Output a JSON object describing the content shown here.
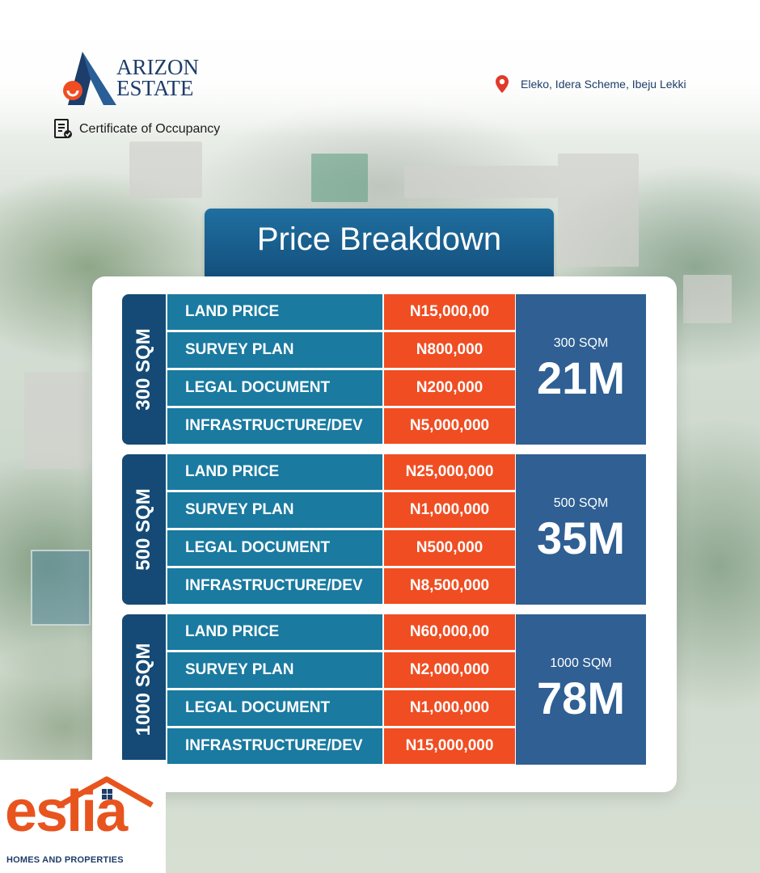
{
  "brand": {
    "logo_line1": "ARIZON",
    "logo_line2": "ESTATE",
    "certificate": "Certificate of Occupancy",
    "location": "Eleko, Idera Scheme, Ibeju Lekki"
  },
  "title": "Price Breakdown",
  "packages": [
    {
      "side_label": "300 SQM",
      "rows": [
        {
          "label": "LAND PRICE",
          "value": "N15,000,00"
        },
        {
          "label": "SURVEY PLAN",
          "value": "N800,000"
        },
        {
          "label": "LEGAL DOCUMENT",
          "value": "N200,000"
        },
        {
          "label": "INFRASTRUCTURE/DEV",
          "value": "N5,000,000"
        }
      ],
      "total_label": "300 SQM",
      "total": "21M"
    },
    {
      "side_label": "500 SQM",
      "rows": [
        {
          "label": "LAND PRICE",
          "value": "N25,000,000"
        },
        {
          "label": "SURVEY PLAN",
          "value": "N1,000,000"
        },
        {
          "label": "LEGAL DOCUMENT",
          "value": "N500,000"
        },
        {
          "label": "INFRASTRUCTURE/DEV",
          "value": "N8,500,000"
        }
      ],
      "total_label": "500 SQM",
      "total": "35M"
    },
    {
      "side_label": "1000 SQM",
      "rows": [
        {
          "label": "LAND PRICE",
          "value": "N60,000,00"
        },
        {
          "label": "SURVEY PLAN",
          "value": "N2,000,000"
        },
        {
          "label": "LEGAL DOCUMENT",
          "value": "N1,000,000"
        },
        {
          "label": "INFRASTRUCTURE/DEV",
          "value": "N15,000,000"
        }
      ],
      "total_label": "1000 SQM",
      "total": "78M"
    }
  ],
  "footer": {
    "brand_word": "eslia",
    "brand_sub": "HOMES AND PROPERTIES"
  },
  "colors": {
    "navy": "#144a75",
    "label_blue": "#1a7aa0",
    "price_orange": "#f04d22",
    "total_blue": "#2f5f93"
  }
}
